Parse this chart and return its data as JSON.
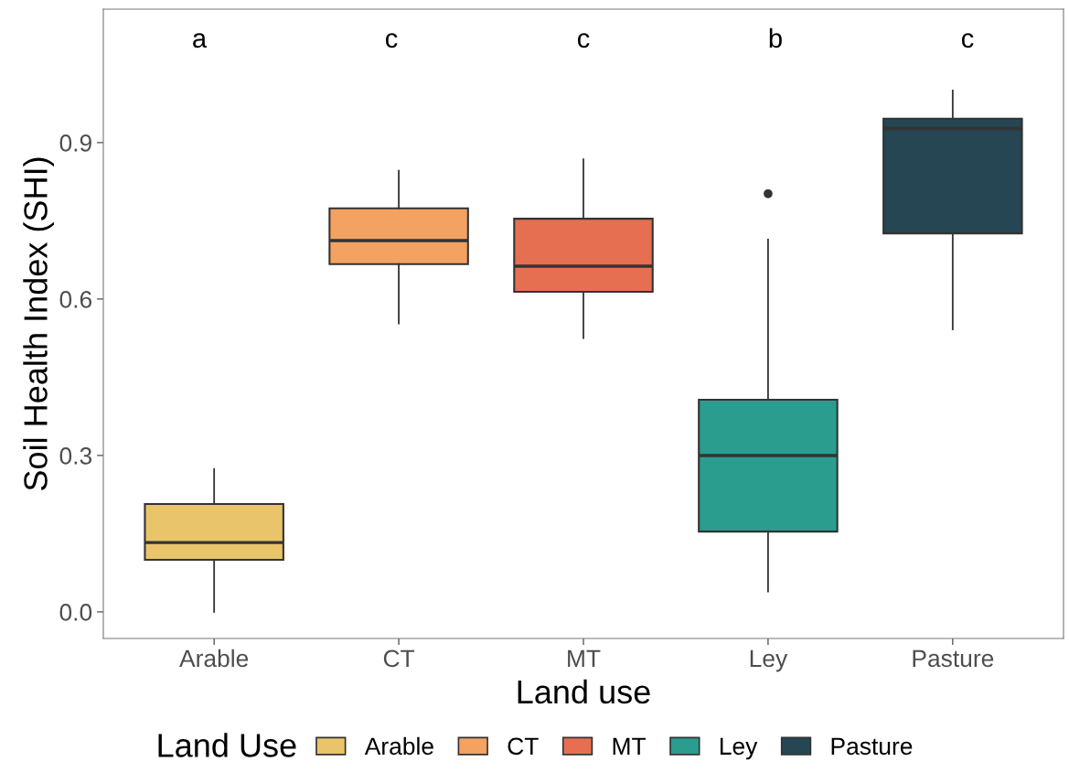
{
  "chart_data": {
    "type": "box",
    "xlabel": "Land use",
    "ylabel": "Soil Health Index (SHI)",
    "legend_title": "Land Use",
    "legend": "bottom",
    "grid": false,
    "categories": [
      "Arable",
      "CT",
      "MT",
      "Ley",
      "Pasture"
    ],
    "series": [
      {
        "name": "Arable",
        "color": "#e9c46a",
        "boxes": [
          {
            "low": 0.0,
            "q1": 0.1,
            "median": 0.133,
            "q3": 0.207,
            "high": 0.274
          },
          null,
          null,
          null,
          null
        ]
      },
      {
        "name": "CT",
        "color": "#f4a261",
        "boxes": [
          null,
          {
            "low": 0.553,
            "q1": 0.667,
            "median": 0.712,
            "q3": 0.774,
            "high": 0.846
          },
          null,
          null,
          null
        ]
      },
      {
        "name": "MT",
        "color": "#e76f51",
        "boxes": [
          null,
          null,
          {
            "low": 0.525,
            "q1": 0.614,
            "median": 0.663,
            "q3": 0.754,
            "high": 0.868
          },
          null,
          null
        ]
      },
      {
        "name": "Ley",
        "color": "#2a9d8f",
        "boxes": [
          null,
          null,
          null,
          {
            "low": 0.039,
            "q1": 0.154,
            "median": 0.3,
            "q3": 0.407,
            "high": 0.714,
            "outliers": [
              0.802
            ]
          },
          null
        ]
      },
      {
        "name": "Pasture",
        "color": "#264653",
        "boxes": [
          null,
          null,
          null,
          null,
          {
            "low": 0.542,
            "q1": 0.726,
            "median": 0.927,
            "q3": 0.946,
            "high": 1.0
          }
        ]
      }
    ],
    "ylim": [
      -0.051,
      1.156
    ],
    "yticks": [
      {
        "value": 0,
        "label": "0.0"
      },
      0.3,
      0.6,
      0.9
    ],
    "annotations": [
      "a",
      "c",
      "c",
      "b",
      "c"
    ]
  }
}
